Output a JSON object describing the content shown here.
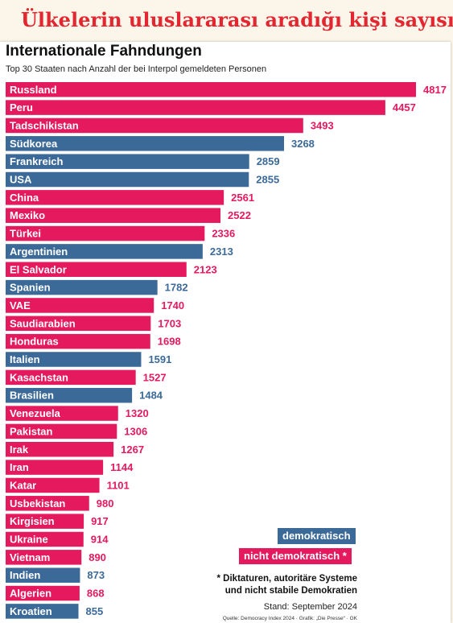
{
  "banner": {
    "title": "Ülkelerin uluslararası aradığı kişi sayısı"
  },
  "chart_data": {
    "type": "bar",
    "orientation": "horizontal",
    "title": "Internationale Fahndungen",
    "subtitle": "Top 30 Staaten nach Anzahl der bei Interpol gemeldeten Personen",
    "categories": [
      "Russland",
      "Peru",
      "Tadschikistan",
      "Südkorea",
      "Frankreich",
      "USA",
      "China",
      "Mexiko",
      "Türkei",
      "Argentinien",
      "El Salvador",
      "Spanien",
      "VAE",
      "Saudiarabien",
      "Honduras",
      "Italien",
      "Kasachstan",
      "Brasilien",
      "Venezuela",
      "Pakistan",
      "Irak",
      "Iran",
      "Katar",
      "Usbekistan",
      "Kirgisien",
      "Ukraine",
      "Vietnam",
      "Indien",
      "Algerien",
      "Kroatien"
    ],
    "values": [
      4817,
      4457,
      3493,
      3268,
      2859,
      2855,
      2561,
      2522,
      2336,
      2313,
      2123,
      1782,
      1740,
      1703,
      1698,
      1591,
      1527,
      1484,
      1320,
      1306,
      1267,
      1144,
      1101,
      980,
      917,
      914,
      890,
      873,
      868,
      855
    ],
    "group": [
      "nicht demokratisch",
      "nicht demokratisch",
      "nicht demokratisch",
      "demokratisch",
      "demokratisch",
      "demokratisch",
      "nicht demokratisch",
      "nicht demokratisch",
      "nicht demokratisch",
      "demokratisch",
      "nicht demokratisch",
      "demokratisch",
      "nicht demokratisch",
      "nicht demokratisch",
      "nicht demokratisch",
      "demokratisch",
      "nicht demokratisch",
      "demokratisch",
      "nicht demokratisch",
      "nicht demokratisch",
      "nicht demokratisch",
      "nicht demokratisch",
      "nicht demokratisch",
      "nicht demokratisch",
      "nicht demokratisch",
      "nicht demokratisch",
      "nicht demokratisch",
      "demokratisch",
      "nicht demokratisch",
      "demokratisch"
    ],
    "xlim": [
      0,
      4817
    ],
    "grid": false,
    "legend": {
      "placement": "bottom-right",
      "items": [
        {
          "name": "demokratisch",
          "color": "#3b6a99"
        },
        {
          "name": "nicht demokratisch *",
          "color": "#e5195e"
        }
      ]
    },
    "colors": {
      "demokratisch": "#3b6a99",
      "nicht demokratisch": "#e5195e"
    },
    "footnote_line1": "* Diktaturen, autoritäre Systeme",
    "footnote_line2": "und nicht stabile Demokratien",
    "stand": "Stand: September 2024",
    "source": "Quelle: Democracy Index 2024 · Grafik: „Die Presse“ · GK"
  }
}
